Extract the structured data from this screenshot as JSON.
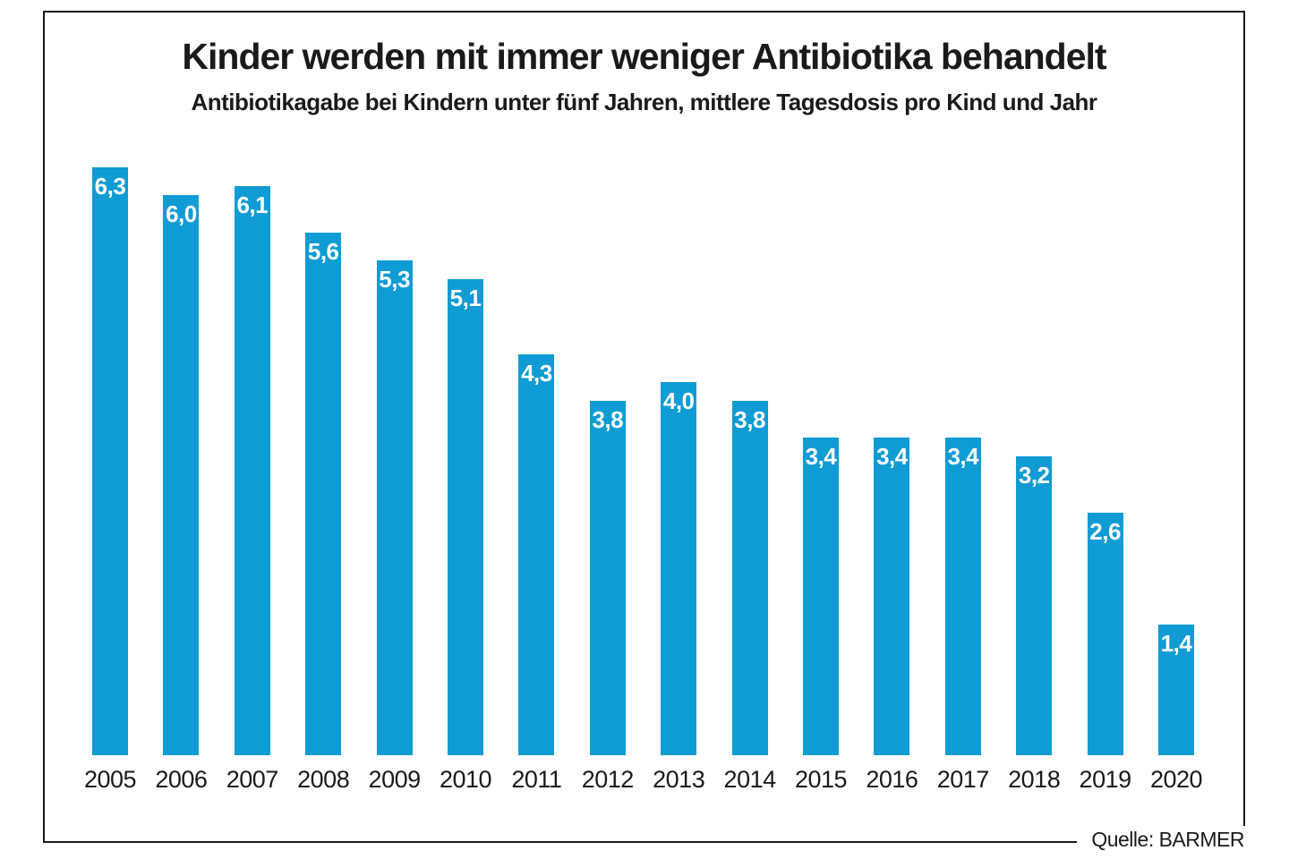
{
  "figure": {
    "title": "Kinder werden mit immer weniger Antibiotika behandelt",
    "subtitle": "Antibiotikagabe bei Kindern unter fünf Jahren, mittlere Tagesdosis pro Kind und Jahr",
    "source": "Quelle: BARMER"
  },
  "chart_data": {
    "type": "bar",
    "title": "Kinder werden mit immer weniger Antibiotika behandelt",
    "subtitle": "Antibiotikagabe bei Kindern unter fünf Jahren, mittlere Tagesdosis pro Kind und Jahr",
    "categories": [
      "2005",
      "2006",
      "2007",
      "2008",
      "2009",
      "2010",
      "2011",
      "2012",
      "2013",
      "2014",
      "2015",
      "2016",
      "2017",
      "2018",
      "2019",
      "2020"
    ],
    "values": [
      6.3,
      6.0,
      6.1,
      5.6,
      5.3,
      5.1,
      4.3,
      3.8,
      4.0,
      3.8,
      3.4,
      3.4,
      3.4,
      3.2,
      2.6,
      1.4
    ],
    "value_labels": [
      "6,3",
      "6,0",
      "6,1",
      "5,6",
      "5,3",
      "5,1",
      "4,3",
      "3,8",
      "4,0",
      "3,8",
      "3,4",
      "3,4",
      "3,4",
      "3,2",
      "2,6",
      "1,4"
    ],
    "xlabel": "",
    "ylabel": "",
    "ylim": [
      0,
      6.5
    ],
    "grid": false,
    "legend": null,
    "bar_color": "#0f9bd3",
    "value_label_color": "#ffffff",
    "axis_label_color": "#1a1a1a",
    "source": "Quelle: BARMER"
  }
}
